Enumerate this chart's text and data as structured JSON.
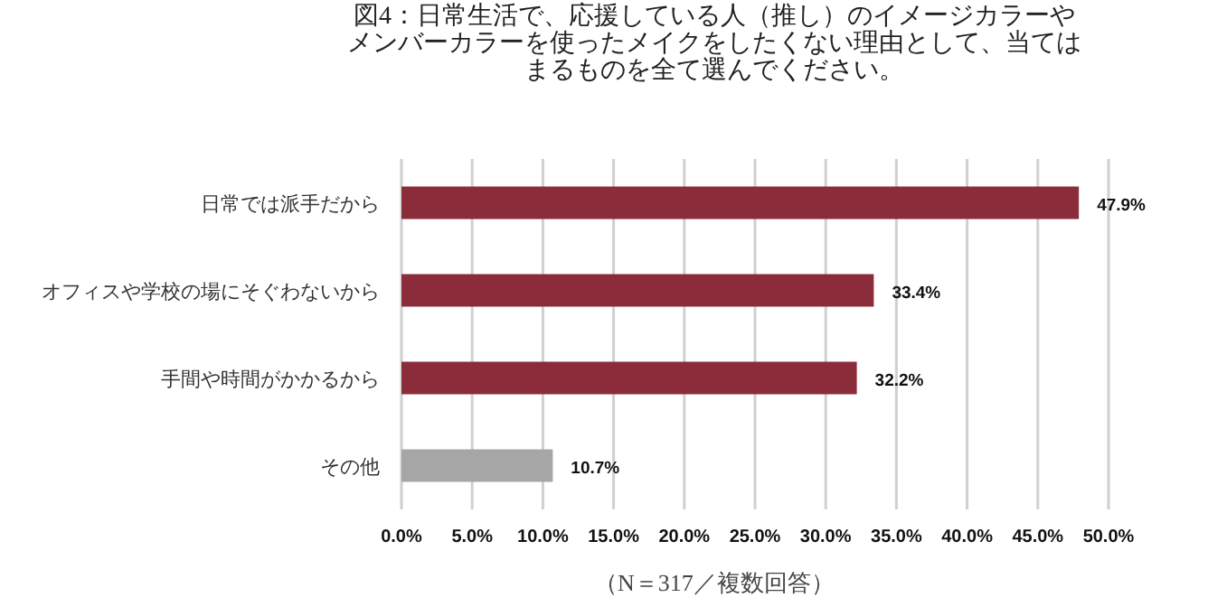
{
  "chart_data": {
    "type": "bar",
    "orientation": "horizontal",
    "title": "図4：日常生活で、応援している人（推し）のイメージカラーやメンバーカラーを使ったメイクをしたくない理由として、当てはまるものを全て選んでください。",
    "categories": [
      "日常では派手だから",
      "オフィスや学校の場にそぐわないから",
      "手間や時間がかかるから",
      "その他"
    ],
    "values": [
      47.9,
      33.4,
      32.2,
      10.7
    ],
    "colors": [
      "#8b2c3a",
      "#8b2c3a",
      "#8b2c3a",
      "#a6a6a6"
    ],
    "value_labels": [
      "47.9%",
      "33.4%",
      "32.2%",
      "10.7%"
    ],
    "xlim": [
      0,
      50
    ],
    "xticks": [
      {
        "value": 0,
        "label": "0.0%"
      },
      {
        "value": 5,
        "label": "5.0%"
      },
      {
        "value": 10,
        "label": "10.0%"
      },
      {
        "value": 15,
        "label": "15.0%"
      },
      {
        "value": 20,
        "label": "20.0%"
      },
      {
        "value": 25,
        "label": "25.0%"
      },
      {
        "value": 30,
        "label": "30.0%"
      },
      {
        "value": 35,
        "label": "35.0%"
      },
      {
        "value": 40,
        "label": "40.0%"
      },
      {
        "value": 45,
        "label": "45.0%"
      },
      {
        "value": 50,
        "label": "50.0%"
      }
    ],
    "grid": "x",
    "annotations": [
      "（N＝317／複数回答）"
    ]
  }
}
